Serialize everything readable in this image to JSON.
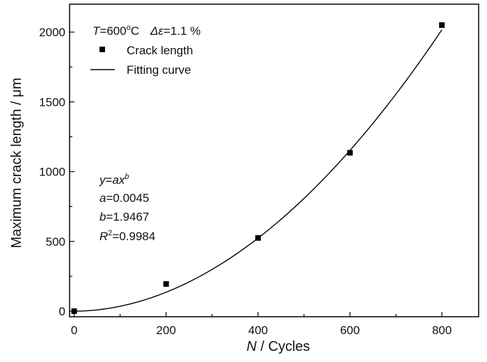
{
  "chart_data": {
    "type": "scatter",
    "x_label_var": "N",
    "x_label_rest": " / Cycles",
    "ylabel": "Maximum crack length / μm",
    "xlim": [
      -10,
      880
    ],
    "ylim": [
      -40,
      2200
    ],
    "x_ticks": [
      0,
      200,
      400,
      600,
      800
    ],
    "x_tick_labels": [
      "0",
      "200",
      "400",
      "600",
      "800"
    ],
    "y_ticks": [
      0,
      500,
      1000,
      1500,
      2000
    ],
    "y_tick_labels": [
      "0",
      "500",
      "1000",
      "1500",
      "2000"
    ],
    "series": [
      {
        "name": "Crack length",
        "marker": "square",
        "x": [
          0,
          200,
          400,
          600,
          800
        ],
        "y": [
          0,
          195,
          525,
          1135,
          2050
        ]
      },
      {
        "name": "Fitting curve",
        "style": "line",
        "model": "power",
        "a": 0.0045,
        "b": 1.9467
      }
    ],
    "condition": {
      "T_var": "T",
      "T_value": "=600",
      "T_sup": "o",
      "T_unit": "C",
      "strain_var": "Δε",
      "strain_value": "=1.1 %"
    },
    "fit_annotation": {
      "eq_y": "y",
      "eq_eq": "=",
      "eq_ax": "ax",
      "eq_sup": "b",
      "a_var": "a",
      "a_value": "=0.0045",
      "b_var": "b",
      "b_value": "=1.9467",
      "r_var": "R",
      "r_sup": "2",
      "r_value": "=0.9984"
    },
    "legend_placement": "top-left",
    "grid": false,
    "colors": {
      "marker": "#000000",
      "line": "#000000",
      "axis": "#000000"
    }
  }
}
